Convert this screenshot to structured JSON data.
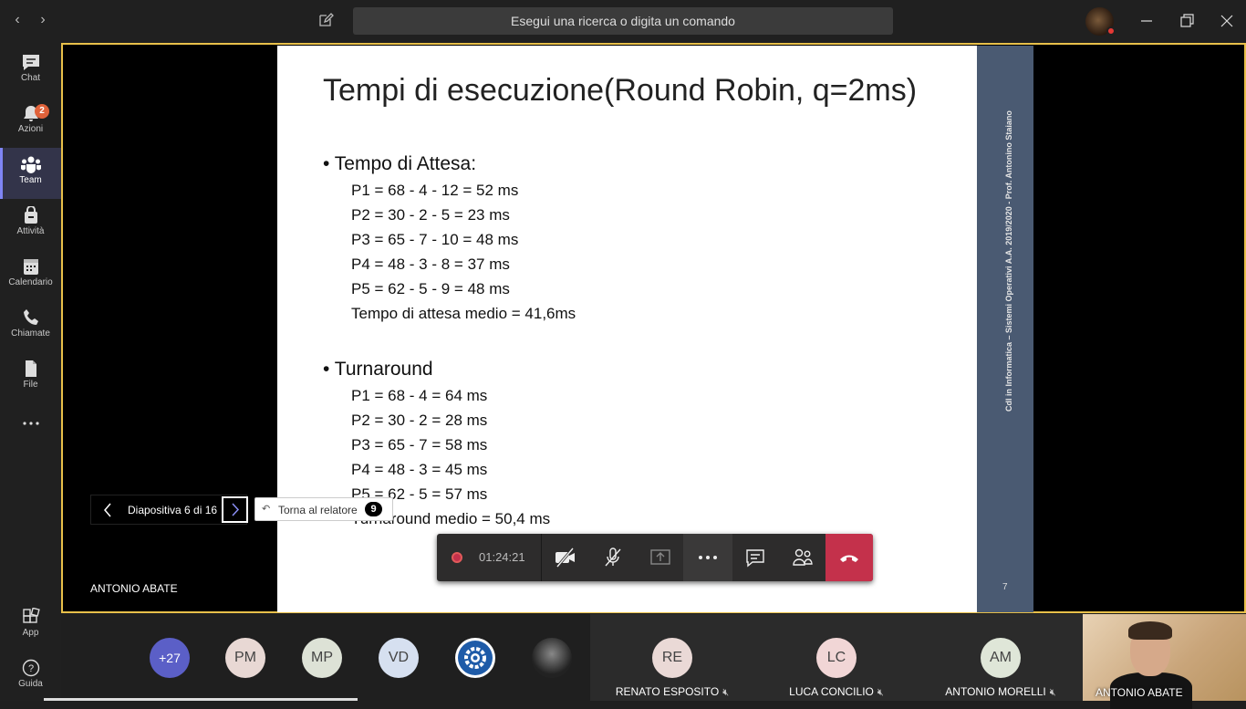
{
  "titlebar": {
    "search_placeholder": "Esegui una ricerca o digita un comando"
  },
  "rail": {
    "items": [
      {
        "label": "Chat",
        "icon": "chat-icon"
      },
      {
        "label": "Azioni",
        "icon": "bell-icon",
        "badge": "2"
      },
      {
        "label": "Team",
        "icon": "teams-icon"
      },
      {
        "label": "Attività",
        "icon": "bag-icon"
      },
      {
        "label": "Calendario",
        "icon": "calendar-icon"
      },
      {
        "label": "Chiamate",
        "icon": "phone-icon"
      },
      {
        "label": "File",
        "icon": "file-icon"
      },
      {
        "label": "App",
        "icon": "apps-icon"
      },
      {
        "label": "Guida",
        "icon": "help-icon"
      }
    ]
  },
  "slide": {
    "title": "Tempi di esecuzione(Round Robin, q=2ms)",
    "section1": {
      "heading": "• Tempo di Attesa:",
      "lines": [
        "P1 = 68 - 4 - 12 = 52 ms",
        "P2 = 30 - 2 - 5 =  23 ms",
        "P3 = 65 - 7 - 10 =  48 ms",
        "P4 = 48 - 3 - 8 =  37 ms",
        "P5 = 62 - 5 - 9 =  48 ms",
        "Tempo di attesa medio = 41,6ms"
      ]
    },
    "section2": {
      "heading": "• Turnaround",
      "lines": [
        "P1 = 68 - 4 = 64 ms",
        "P2 = 30 - 2 =  28 ms",
        "P3 = 65 - 7 =  58 ms",
        "P4 = 48 - 3 =  45 ms",
        "P5 = 62 - 5 =  57 ms",
        "Turnaround medio = 50,4 ms"
      ]
    },
    "side_text": "Cdl in Informatica – Sistemi Operativi  A.A. 2019/2020 - Prof. Antonino Staiano",
    "page_number": "7"
  },
  "slide_nav": {
    "label": "Diapositiva 6 di 16",
    "back_to_presenter": "Torna al relatore",
    "back_count": "9"
  },
  "presenter_name": "ANTONIO ABATE",
  "callbar": {
    "timer": "01:24:21"
  },
  "roster": {
    "overflow": "+27",
    "avatars": [
      {
        "initials": "PM",
        "color": "#e8d8d4"
      },
      {
        "initials": "MP",
        "color": "#dde2d6"
      },
      {
        "initials": "VD",
        "color": "#d6e0f0"
      }
    ],
    "tiles": [
      {
        "initials": "RE",
        "name": "RENATO ESPOSITO",
        "color": "#ead9d6"
      },
      {
        "initials": "LC",
        "name": "LUCA CONCILIO",
        "color": "#f1d6d6"
      },
      {
        "initials": "AM",
        "name": "ANTONIO MORELLI",
        "color": "#dfe6d8"
      }
    ],
    "video_name": "ANTONIO ABATE"
  },
  "colors": {
    "accent": "#6264a7",
    "stage_border": "#e8c04a",
    "hangup": "#c4314b",
    "slide_band": "#4a5a72"
  }
}
